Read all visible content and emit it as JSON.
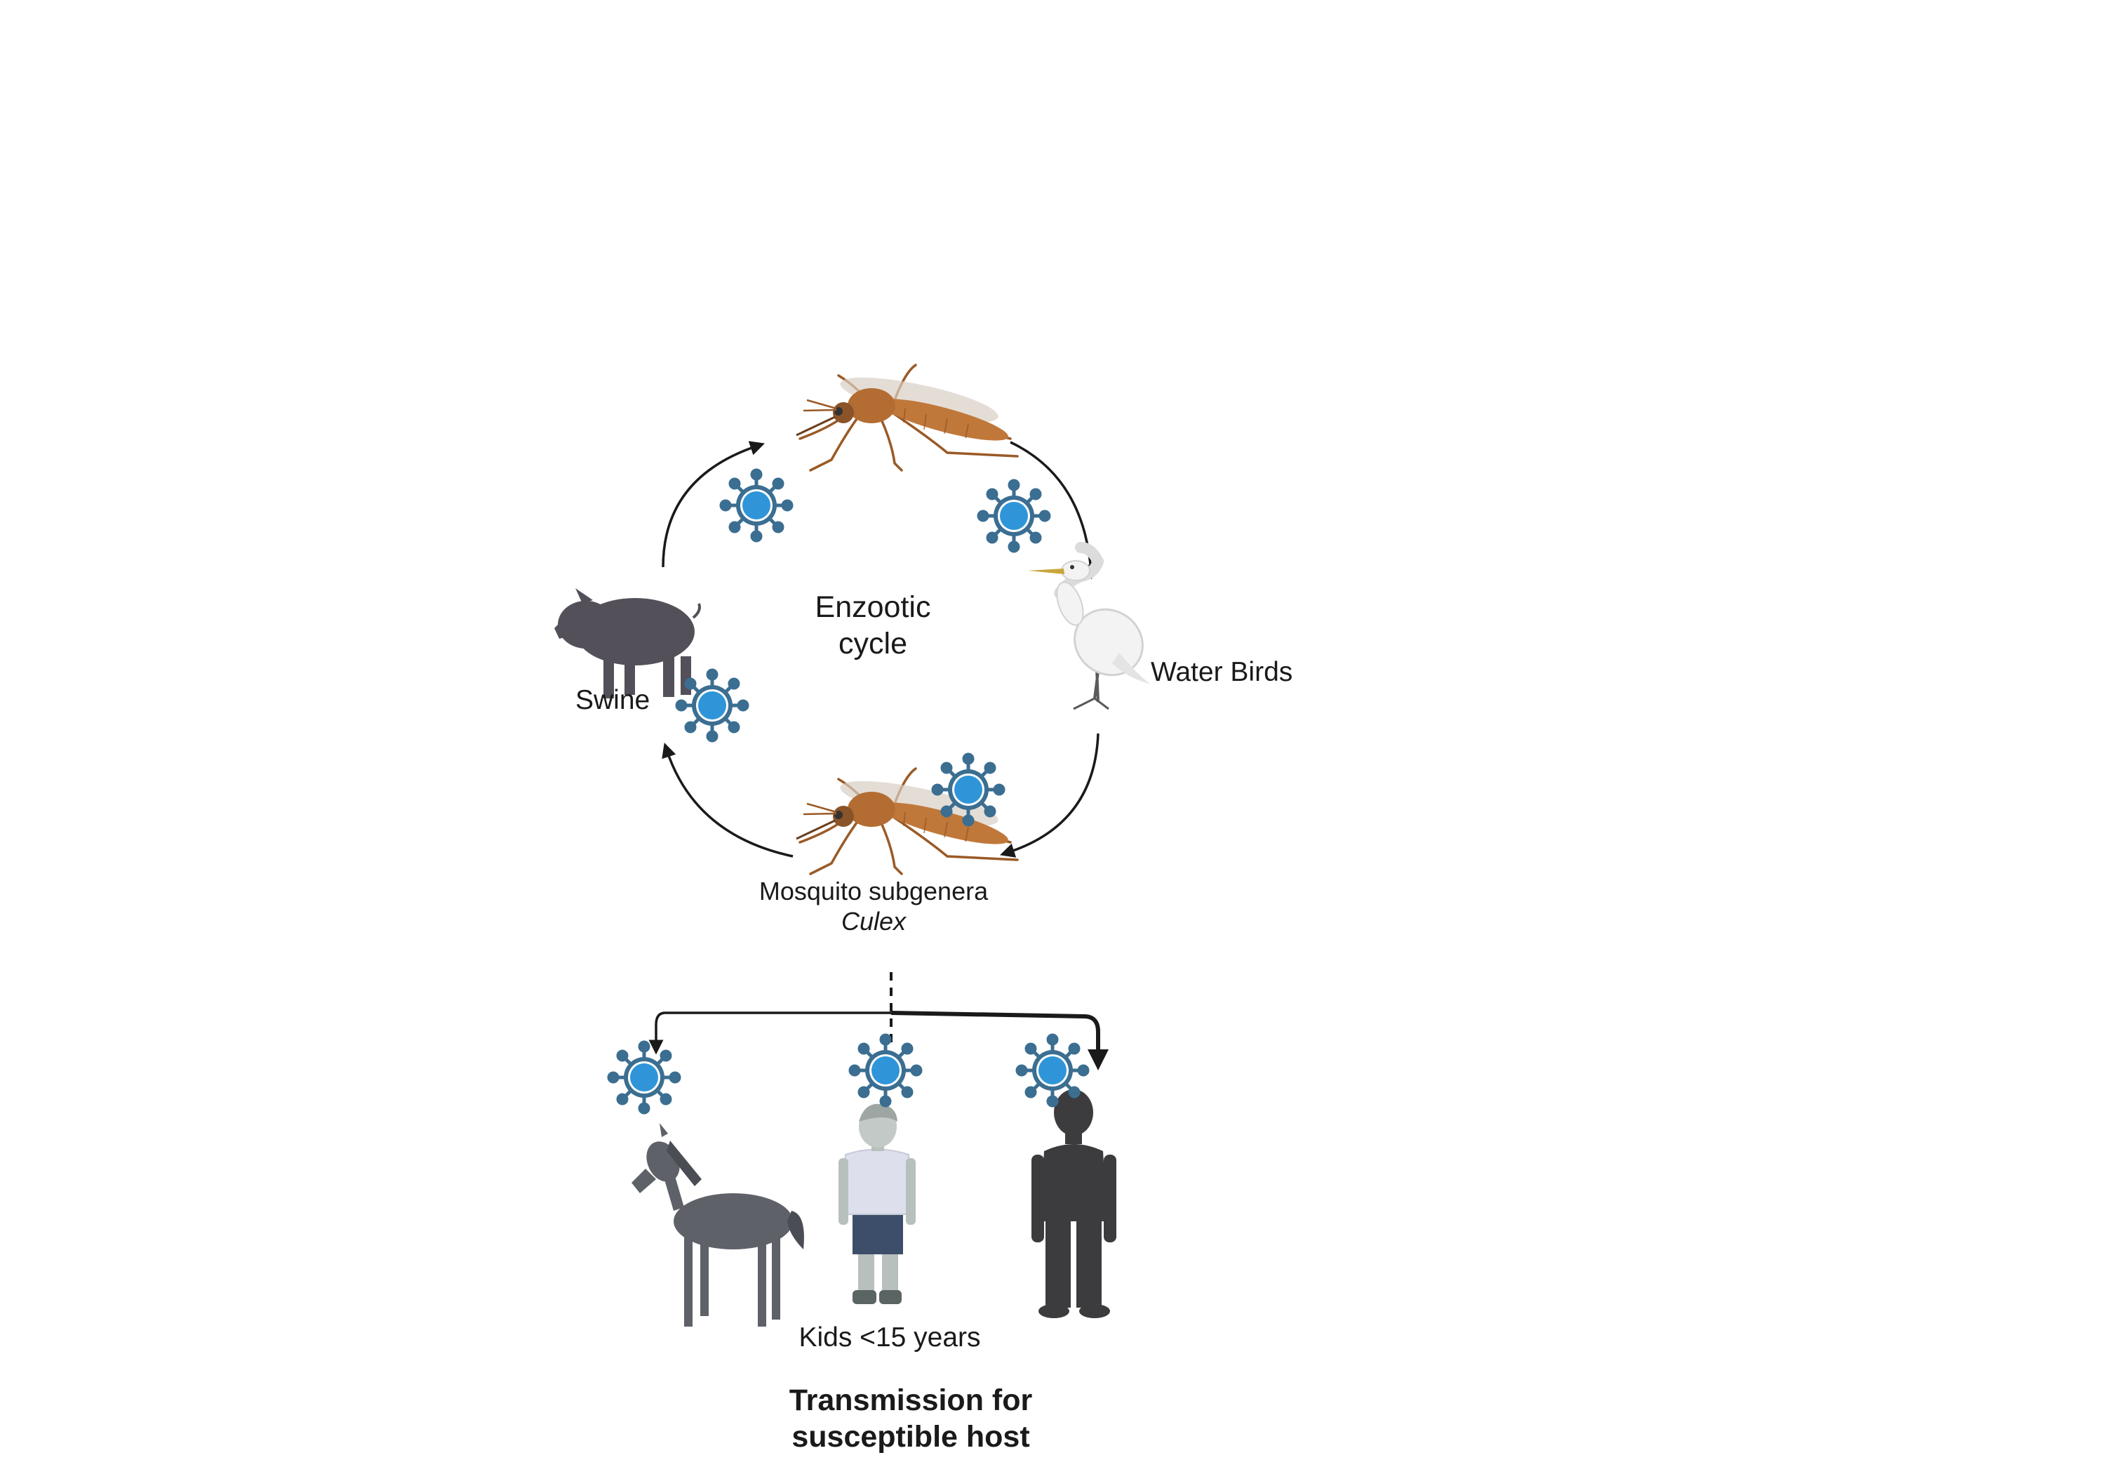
{
  "labels": {
    "cycle_line1": "Enzootic",
    "cycle_line2": "cycle",
    "swine": "Swine",
    "water_birds": "Water Birds",
    "mosquito_line1": "Mosquito subgenera",
    "mosquito_line2": "Culex",
    "kids": "Kids <15 years",
    "transmission_line1": "Transmission for",
    "transmission_line2": "susceptible host"
  },
  "colors": {
    "arrow": "#1a1a1a",
    "virus_core": "#2f95d8",
    "virus_ring": "#3b6e91",
    "mosquito_body": "#c0783a",
    "swine": "#54505a",
    "horse": "#5e6168",
    "adult": "#3c3c3e",
    "kid_shirt": "#dde0ec",
    "kid_shorts": "#3c4e69",
    "bird": "#f3f3f3"
  },
  "icons": [
    "mosquito-icon",
    "water-bird-icon",
    "swine-icon",
    "virus-icon",
    "horse-icon",
    "child-icon",
    "adult-human-icon"
  ]
}
